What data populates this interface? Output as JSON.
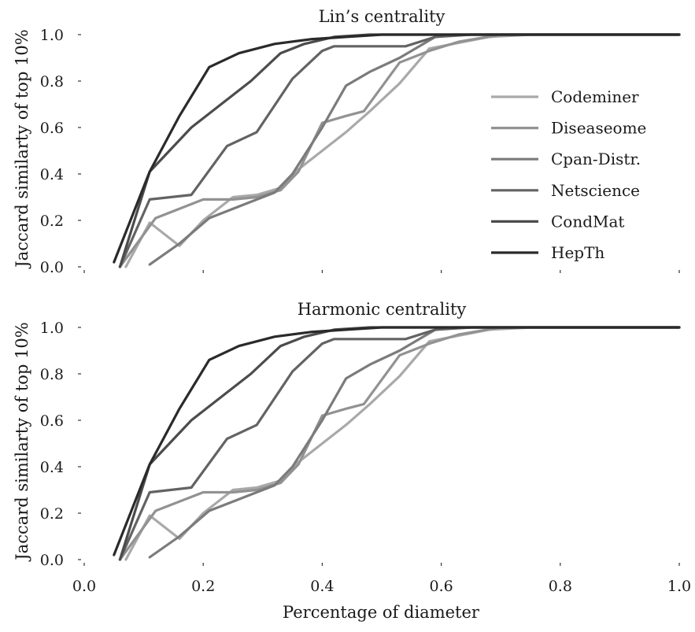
{
  "colors": {
    "Codeminer": "#a9a9a9",
    "Diseaseome": "#929292",
    "Cpan-Distr.": "#7b7b7b",
    "Netscience": "#636363",
    "CondMat": "#4c4c4c",
    "HepTh": "#2a2a2a"
  },
  "xlabel": "Percentage of diameter",
  "legend_placement": "center-right of top panel",
  "chart_data": [
    {
      "type": "line",
      "title": "Lin’s centrality",
      "xlabel": "",
      "ylabel": "Jaccard similarty of top 10%",
      "xlim": [
        0.0,
        1.0
      ],
      "ylim": [
        0.0,
        1.0
      ],
      "xticks": [],
      "yticks": [
        "0.0",
        "0.2",
        "0.4",
        "0.6",
        "0.8",
        "1.0"
      ],
      "grid": false,
      "legend": true,
      "series": [
        {
          "name": "Codeminer",
          "x": [
            0.07,
            0.11,
            0.16,
            0.2,
            0.25,
            0.29,
            0.33,
            0.36,
            0.4,
            0.44,
            0.48,
            0.53,
            0.58,
            0.62,
            0.68,
            0.75,
            1.0
          ],
          "y": [
            0.0,
            0.19,
            0.09,
            0.2,
            0.3,
            0.31,
            0.34,
            0.42,
            0.5,
            0.58,
            0.67,
            0.79,
            0.94,
            0.96,
            0.99,
            1.0,
            1.0
          ]
        },
        {
          "name": "Diseaseome",
          "x": [
            0.06,
            0.12,
            0.2,
            0.25,
            0.29,
            0.33,
            0.36,
            0.4,
            0.44,
            0.47,
            0.53,
            0.58,
            0.63,
            0.7,
            1.0
          ],
          "y": [
            0.0,
            0.21,
            0.29,
            0.29,
            0.3,
            0.33,
            0.41,
            0.62,
            0.65,
            0.67,
            0.88,
            0.93,
            0.97,
            1.0,
            1.0
          ]
        },
        {
          "name": "Cpan-Distr.",
          "x": [
            0.11,
            0.16,
            0.21,
            0.27,
            0.32,
            0.35,
            0.4,
            0.44,
            0.48,
            0.53,
            0.59,
            0.62,
            0.7,
            1.0
          ],
          "y": [
            0.01,
            0.1,
            0.21,
            0.27,
            0.32,
            0.4,
            0.6,
            0.78,
            0.84,
            0.9,
            0.99,
            1.0,
            1.0,
            1.0
          ]
        },
        {
          "name": "Netscience",
          "x": [
            0.06,
            0.11,
            0.18,
            0.24,
            0.29,
            0.35,
            0.4,
            0.42,
            0.54,
            0.59,
            0.65,
            1.0
          ],
          "y": [
            0.0,
            0.29,
            0.31,
            0.52,
            0.58,
            0.81,
            0.93,
            0.95,
            0.95,
            0.99,
            1.0,
            1.0
          ]
        },
        {
          "name": "CondMat",
          "x": [
            0.06,
            0.11,
            0.18,
            0.24,
            0.28,
            0.33,
            0.37,
            0.42,
            0.48,
            0.55,
            0.6,
            1.0
          ],
          "y": [
            0.0,
            0.41,
            0.6,
            0.72,
            0.8,
            0.92,
            0.96,
            0.99,
            1.0,
            1.0,
            1.0,
            1.0
          ]
        },
        {
          "name": "HepTh",
          "x": [
            0.05,
            0.11,
            0.16,
            0.21,
            0.26,
            0.32,
            0.38,
            0.44,
            0.5,
            0.55,
            1.0
          ],
          "y": [
            0.02,
            0.41,
            0.65,
            0.86,
            0.92,
            0.96,
            0.98,
            0.99,
            1.0,
            1.0,
            1.0
          ]
        }
      ]
    },
    {
      "type": "line",
      "title": "Harmonic centrality",
      "xlabel": "Percentage of diameter",
      "ylabel": "Jaccard similarty of top 10%",
      "xlim": [
        0.0,
        1.0
      ],
      "ylim": [
        0.0,
        1.0
      ],
      "xticks": [
        "0.0",
        "0.2",
        "0.4",
        "0.6",
        "0.8",
        "1.0"
      ],
      "yticks": [
        "0.0",
        "0.2",
        "0.4",
        "0.6",
        "0.8",
        "1.0"
      ],
      "grid": false,
      "legend": false,
      "series": [
        {
          "name": "Codeminer",
          "x": [
            0.07,
            0.11,
            0.16,
            0.2,
            0.25,
            0.29,
            0.33,
            0.36,
            0.4,
            0.44,
            0.48,
            0.53,
            0.58,
            0.62,
            0.68,
            0.75,
            1.0
          ],
          "y": [
            0.0,
            0.19,
            0.09,
            0.2,
            0.3,
            0.31,
            0.34,
            0.42,
            0.5,
            0.58,
            0.67,
            0.79,
            0.94,
            0.96,
            0.99,
            1.0,
            1.0
          ]
        },
        {
          "name": "Diseaseome",
          "x": [
            0.06,
            0.12,
            0.2,
            0.25,
            0.29,
            0.33,
            0.36,
            0.4,
            0.44,
            0.47,
            0.53,
            0.58,
            0.63,
            0.7,
            1.0
          ],
          "y": [
            0.0,
            0.21,
            0.29,
            0.29,
            0.3,
            0.33,
            0.41,
            0.62,
            0.65,
            0.67,
            0.88,
            0.93,
            0.97,
            1.0,
            1.0
          ]
        },
        {
          "name": "Cpan-Distr.",
          "x": [
            0.11,
            0.16,
            0.21,
            0.27,
            0.32,
            0.35,
            0.4,
            0.44,
            0.48,
            0.53,
            0.59,
            0.62,
            0.7,
            1.0
          ],
          "y": [
            0.01,
            0.1,
            0.21,
            0.27,
            0.32,
            0.4,
            0.6,
            0.78,
            0.84,
            0.9,
            0.99,
            1.0,
            1.0,
            1.0
          ]
        },
        {
          "name": "Netscience",
          "x": [
            0.06,
            0.11,
            0.18,
            0.24,
            0.29,
            0.35,
            0.4,
            0.42,
            0.54,
            0.59,
            0.65,
            1.0
          ],
          "y": [
            0.0,
            0.29,
            0.31,
            0.52,
            0.58,
            0.81,
            0.93,
            0.95,
            0.95,
            0.99,
            1.0,
            1.0
          ]
        },
        {
          "name": "CondMat",
          "x": [
            0.06,
            0.11,
            0.18,
            0.24,
            0.28,
            0.33,
            0.37,
            0.42,
            0.48,
            0.55,
            0.6,
            1.0
          ],
          "y": [
            0.0,
            0.41,
            0.6,
            0.72,
            0.8,
            0.92,
            0.96,
            0.99,
            1.0,
            1.0,
            1.0,
            1.0
          ]
        },
        {
          "name": "HepTh",
          "x": [
            0.05,
            0.11,
            0.16,
            0.21,
            0.26,
            0.32,
            0.38,
            0.44,
            0.5,
            0.55,
            1.0
          ],
          "y": [
            0.02,
            0.41,
            0.65,
            0.86,
            0.92,
            0.96,
            0.98,
            0.99,
            1.0,
            1.0,
            1.0
          ]
        }
      ]
    }
  ]
}
